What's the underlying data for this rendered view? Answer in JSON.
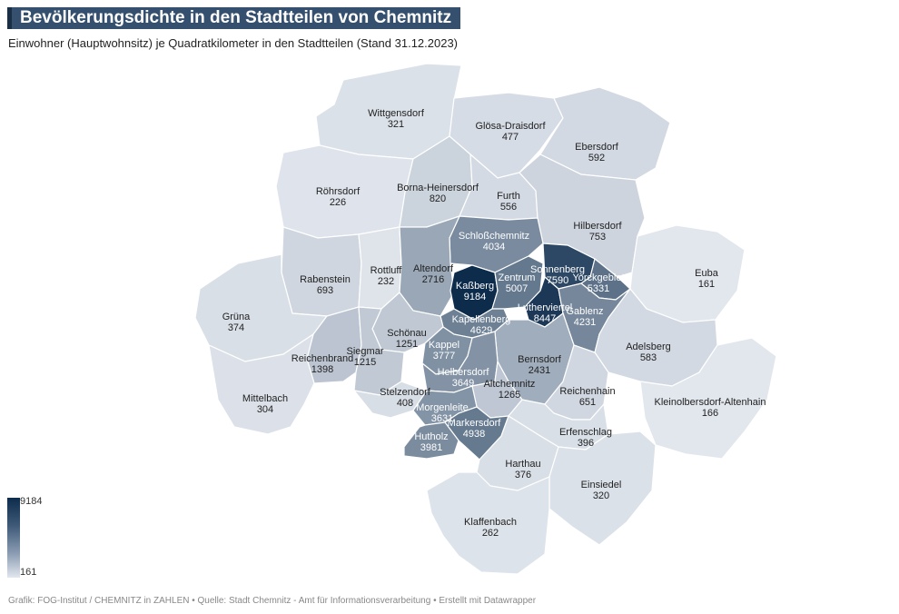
{
  "title": "Bevölkerungsdichte in den Stadtteilen von Chemnitz",
  "subtitle": "Einwohner (Hauptwohnsitz) je Quadratkilometer in den Stadtteilen (Stand 31.12.2023)",
  "legend": {
    "max": "9184",
    "min": "161"
  },
  "source": "Grafik: FOG-Institut / CHEMNITZ in ZAHLEN • Quelle: Stadt Chemnitz - Amt für Informationsverarbeitung • Erstellt mit Datawrapper",
  "districts": [
    {
      "name": "Wittgensdorf",
      "value": "321"
    },
    {
      "name": "Glösa-Draisdorf",
      "value": "477"
    },
    {
      "name": "Ebersdorf",
      "value": "592"
    },
    {
      "name": "Röhrsdorf",
      "value": "226"
    },
    {
      "name": "Borna-Heinersdorf",
      "value": "820"
    },
    {
      "name": "Furth",
      "value": "556"
    },
    {
      "name": "Hilbersdorf",
      "value": "753"
    },
    {
      "name": "Schloßchemnitz",
      "value": "4034"
    },
    {
      "name": "Rabenstein",
      "value": "693"
    },
    {
      "name": "Rottluff",
      "value": "232"
    },
    {
      "name": "Altendorf",
      "value": "2716"
    },
    {
      "name": "Kaßberg",
      "value": "9184"
    },
    {
      "name": "Zentrum",
      "value": "5007"
    },
    {
      "name": "Sonnenberg",
      "value": "7590"
    },
    {
      "name": "Yorckgebiet",
      "value": "5331"
    },
    {
      "name": "Euba",
      "value": "161"
    },
    {
      "name": "Lutherviertel",
      "value": "8447"
    },
    {
      "name": "Gablenz",
      "value": "4231"
    },
    {
      "name": "Grüna",
      "value": "374"
    },
    {
      "name": "Kapellenberg",
      "value": "4629"
    },
    {
      "name": "Schönau",
      "value": "1251"
    },
    {
      "name": "Kappel",
      "value": "3777"
    },
    {
      "name": "Reichenbrand",
      "value": "1398"
    },
    {
      "name": "Siegmar",
      "value": "1215"
    },
    {
      "name": "Bernsdorf",
      "value": "2431"
    },
    {
      "name": "Adelsberg",
      "value": "583"
    },
    {
      "name": "Helbersdorf",
      "value": "3649"
    },
    {
      "name": "Altchemnitz",
      "value": "1265"
    },
    {
      "name": "Mittelbach",
      "value": "304"
    },
    {
      "name": "Stelzendorf",
      "value": "408"
    },
    {
      "name": "Reichenhain",
      "value": "651"
    },
    {
      "name": "Kleinolbersdorf-Altenhain",
      "value": "166"
    },
    {
      "name": "Morgenleite",
      "value": "3631"
    },
    {
      "name": "Markersdorf",
      "value": "4938"
    },
    {
      "name": "Erfenschlag",
      "value": "396"
    },
    {
      "name": "Hutholz",
      "value": "3981"
    },
    {
      "name": "Harthau",
      "value": "376"
    },
    {
      "name": "Einsiedel",
      "value": "320"
    },
    {
      "name": "Klaffenbach",
      "value": "262"
    }
  ]
}
